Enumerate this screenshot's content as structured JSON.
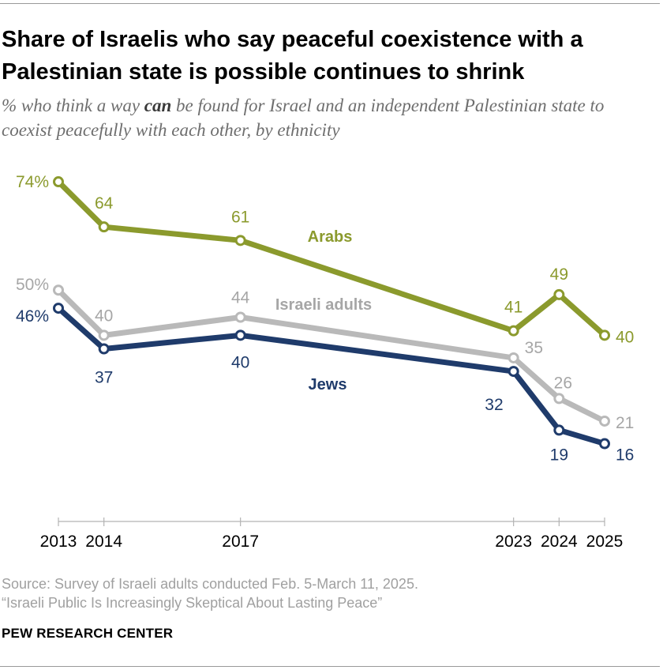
{
  "title_text": "Share of Israelis who say peaceful coexistence with a Palestinian state is possible continues to shrink",
  "subtitle": {
    "before": "% who think a way ",
    "emphasis": "can",
    "after": " be found for Israel and an independent Palestinian state to coexist peacefully with each other, by ethnicity"
  },
  "source": {
    "line1": "Source: Survey of Israeli adults conducted Feb. 5-March 11, 2025.",
    "line2": "“Israeli Public Is Increasingly Skeptical About Lasting Peace”"
  },
  "brand": "PEW RESEARCH CENTER",
  "colors": {
    "arabs": "#8b9a2d",
    "adults": "#b9b9b9",
    "adults_label": "#a6a6a6",
    "jews": "#1f3b6b",
    "axis": "#b3b3b3"
  },
  "chart_data": {
    "type": "line",
    "x": [
      2013,
      2014,
      2017,
      2023,
      2024,
      2025
    ],
    "tick_labels": [
      "2013",
      "2014",
      "2017",
      "2023",
      "2024",
      "2025"
    ],
    "ylim": [
      0,
      100
    ],
    "grid": false,
    "series": [
      {
        "key": "arabs",
        "name": "Arabs",
        "values": [
          74,
          64,
          61,
          41,
          49,
          40
        ],
        "labels": [
          "74%",
          "64",
          "61",
          "41",
          "49",
          "40"
        ]
      },
      {
        "key": "adults",
        "name": "Israeli adults",
        "values": [
          50,
          40,
          44,
          35,
          26,
          21
        ],
        "labels": [
          "50%",
          "40",
          "44",
          "35",
          "26",
          "21"
        ]
      },
      {
        "key": "jews",
        "name": "Jews",
        "values": [
          46,
          37,
          40,
          32,
          19,
          16
        ],
        "labels": [
          "46%",
          "37",
          "40",
          "32",
          "19",
          "16"
        ]
      }
    ]
  }
}
